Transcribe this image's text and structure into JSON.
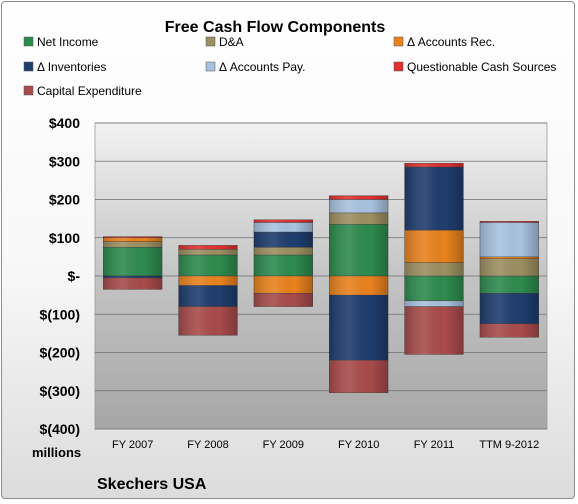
{
  "chart_data": {
    "type": "bar",
    "stacked": true,
    "title": "Free Cash Flow Components",
    "unit_label": "millions",
    "source_label": "Skechers USA",
    "categories": [
      "FY 2007",
      "FY 2008",
      "FY 2009",
      "FY 2010",
      "FY 2011",
      "TTM 9-2012"
    ],
    "y_ticks": [
      "$400",
      "$300",
      "$200",
      "$100",
      "$-",
      "$(100)",
      "$(200)",
      "$(300)",
      "$(400)"
    ],
    "ylim": [
      -400,
      400
    ],
    "grid": true,
    "legend_position": "top",
    "series": [
      {
        "name": "Net Income",
        "color": "#2e8b4f",
        "values": [
          75,
          55,
          55,
          135,
          -65,
          -45
        ]
      },
      {
        "name": "D&A",
        "color": "#9c8f61",
        "values": [
          15,
          15,
          20,
          30,
          35,
          45
        ]
      },
      {
        "name": "Δ Accounts Rec.",
        "color": "#e8821e",
        "values": [
          10,
          -25,
          -45,
          -50,
          85,
          5
        ]
      },
      {
        "name": "Δ Inventories",
        "color": "#1f3d6e",
        "values": [
          -5,
          -55,
          40,
          -170,
          165,
          -80
        ]
      },
      {
        "name": "Δ Accounts Pay.",
        "color": "#a8c2df",
        "values": [
          0,
          0,
          25,
          35,
          -15,
          90
        ]
      },
      {
        "name": "Questionable Cash Sources",
        "color": "#e03030",
        "values": [
          3,
          10,
          7,
          10,
          10,
          3
        ]
      },
      {
        "name": "Capital Expenditure",
        "color": "#a84b4b",
        "values": [
          -30,
          -75,
          -35,
          -85,
          -125,
          -35
        ]
      }
    ]
  }
}
